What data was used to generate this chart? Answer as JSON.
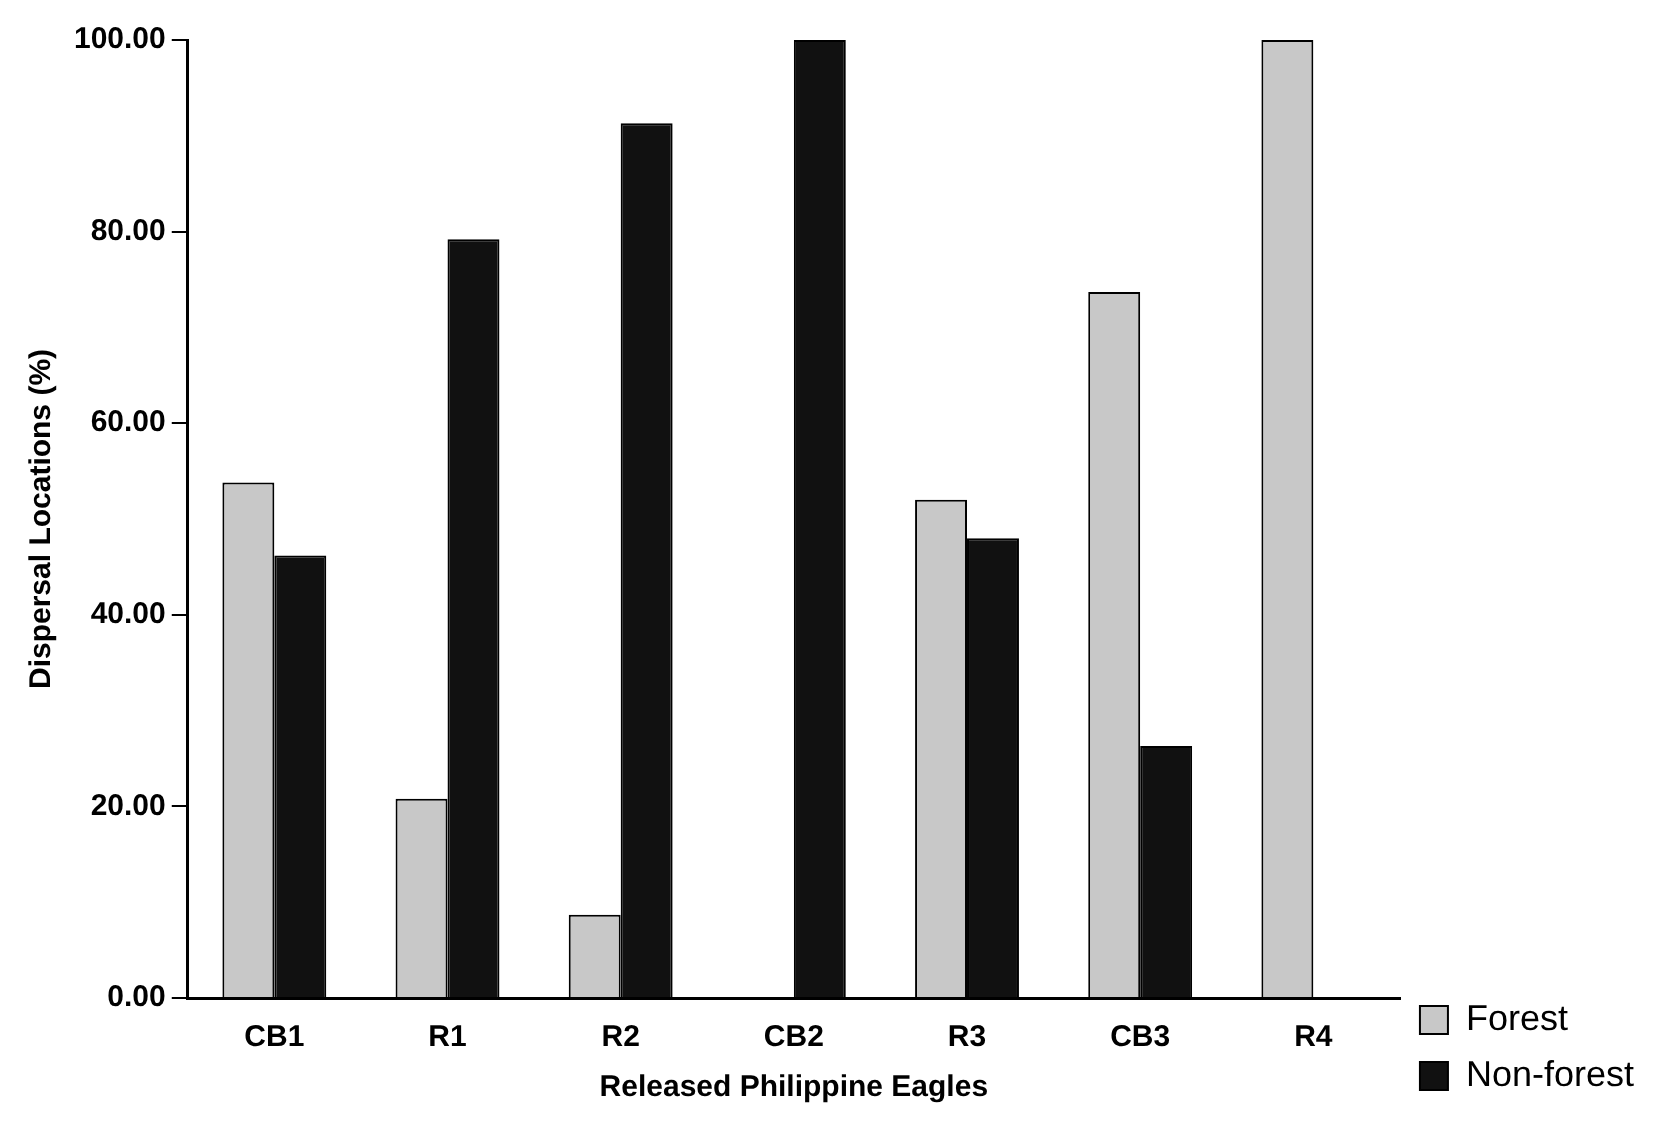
{
  "chart_data": {
    "type": "bar",
    "xlabel": "Released Philippine Eagles",
    "ylabel": "Dispersal Locations (%)",
    "categories": [
      "CB1",
      "R1",
      "R2",
      "CB2",
      "R3",
      "CB3",
      "R4"
    ],
    "series": [
      {
        "name": "Forest",
        "color": "#c8c8c8",
        "values": [
          53.8,
          20.8,
          8.7,
          0,
          52.0,
          73.7,
          100
        ]
      },
      {
        "name": "Non-forest",
        "color": "#111111",
        "values": [
          46.2,
          79.2,
          91.3,
          100,
          48.0,
          26.3,
          0
        ]
      }
    ],
    "ylim": [
      0,
      100
    ],
    "yticks": [
      {
        "value": 0,
        "label": "0.00"
      },
      {
        "value": 20,
        "label": "20.00"
      },
      {
        "value": 40,
        "label": "40.00"
      },
      {
        "value": 60,
        "label": "60.00"
      },
      {
        "value": 80,
        "label": "80.00"
      },
      {
        "value": 100,
        "label": "100.00"
      }
    ],
    "grid": false,
    "legend": "bottom right"
  }
}
